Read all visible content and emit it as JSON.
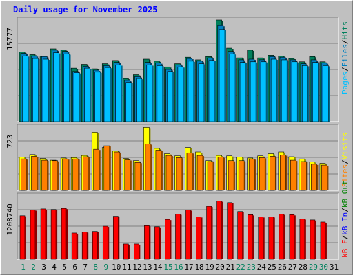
{
  "title": "Daily usage for November 2025",
  "colors": {
    "background": "#c0c0c0",
    "panel": "#c0c0c0",
    "hits": "#00805c",
    "files": "#0080c0",
    "pages": "#00c0ff",
    "visits": "#ffff00",
    "sites": "#ff8000",
    "kbin": "#0000ff",
    "kbout": "#008000",
    "kbf": "#ff0000",
    "xtick_weekday": "#000000",
    "xtick_weekend": "#00805c"
  },
  "chart_data": [
    {
      "type": "bar",
      "panel": "hits-files-pages",
      "title": "Daily usage for November 2025",
      "ytick_label": "15777",
      "ylim": [
        0,
        15777
      ],
      "legend": [
        "Pages",
        "/",
        "Files",
        "/",
        "Hits"
      ],
      "categories": [
        "1",
        "2",
        "3",
        "4",
        "5",
        "6",
        "7",
        "8",
        "9",
        "10",
        "11",
        "12",
        "13",
        "14",
        "15",
        "16",
        "17",
        "18",
        "19",
        "20",
        "21",
        "22",
        "23",
        "24",
        "25",
        "26",
        "27",
        "28",
        "29",
        "30",
        "31"
      ],
      "series": [
        {
          "name": "Hits",
          "values": [
            10800,
            10400,
            10200,
            11300,
            11100,
            8300,
            8900,
            8200,
            9000,
            9500,
            6700,
            7300,
            9700,
            9400,
            8500,
            9000,
            10000,
            9600,
            10100,
            15800,
            11400,
            9900,
            11100,
            9900,
            10300,
            10200,
            9800,
            9300,
            10100,
            9300,
            0
          ]
        },
        {
          "name": "Files",
          "values": [
            10600,
            10200,
            10100,
            11100,
            10900,
            7800,
            8600,
            8000,
            8700,
            9200,
            6400,
            7000,
            9200,
            9100,
            8100,
            8800,
            9800,
            9400,
            9900,
            14900,
            10900,
            9600,
            9700,
            9600,
            10100,
            10000,
            9600,
            9000,
            9600,
            9100,
            0
          ]
        },
        {
          "name": "Pages",
          "values": [
            10200,
            9800,
            9700,
            10700,
            10500,
            7600,
            8300,
            7700,
            8400,
            8800,
            6100,
            6700,
            8800,
            8700,
            7800,
            8500,
            9400,
            9000,
            9500,
            14300,
            10500,
            9200,
            9300,
            9300,
            9700,
            9600,
            9300,
            8700,
            9200,
            8700,
            0
          ]
        }
      ]
    },
    {
      "type": "bar",
      "panel": "visits-sites",
      "ytick_label": "723",
      "ylim": [
        0,
        723
      ],
      "legend": [
        "Sites",
        "/",
        "Visits"
      ],
      "categories": [
        "1",
        "2",
        "3",
        "4",
        "5",
        "6",
        "7",
        "8",
        "9",
        "10",
        "11",
        "12",
        "13",
        "14",
        "15",
        "16",
        "17",
        "18",
        "19",
        "20",
        "21",
        "22",
        "23",
        "24",
        "25",
        "26",
        "27",
        "28",
        "29",
        "30",
        "31"
      ],
      "series": [
        {
          "name": "Visits",
          "values": [
            380,
            410,
            365,
            345,
            370,
            375,
            400,
            665,
            490,
            450,
            365,
            340,
            720,
            480,
            420,
            395,
            490,
            440,
            340,
            400,
            395,
            380,
            370,
            395,
            420,
            440,
            385,
            360,
            325,
            310,
            0
          ]
        },
        {
          "name": "Sites",
          "values": [
            360,
            390,
            345,
            340,
            360,
            360,
            385,
            470,
            510,
            440,
            350,
            320,
            530,
            460,
            400,
            375,
            430,
            400,
            330,
            380,
            340,
            340,
            360,
            375,
            390,
            405,
            345,
            330,
            300,
            290,
            0
          ]
        }
      ]
    },
    {
      "type": "bar",
      "panel": "kb-f",
      "ytick_label": "1208740",
      "ylim": [
        0,
        1208740
      ],
      "legend": [
        "kB F",
        "/",
        "kB In",
        "/",
        "kB Out"
      ],
      "categories": [
        "1",
        "2",
        "3",
        "4",
        "5",
        "6",
        "7",
        "8",
        "9",
        "10",
        "11",
        "12",
        "13",
        "14",
        "15",
        "16",
        "17",
        "18",
        "19",
        "20",
        "21",
        "22",
        "23",
        "24",
        "25",
        "26",
        "27",
        "28",
        "29",
        "30",
        "31"
      ],
      "series": [
        {
          "name": "kB F",
          "values": [
            830000,
            940000,
            960000,
            950000,
            970000,
            500000,
            520000,
            530000,
            630000,
            820000,
            290000,
            290000,
            640000,
            620000,
            760000,
            860000,
            940000,
            810000,
            1010000,
            1110000,
            1080000,
            910000,
            850000,
            810000,
            810000,
            860000,
            850000,
            770000,
            750000,
            710000,
            0
          ]
        }
      ]
    }
  ]
}
